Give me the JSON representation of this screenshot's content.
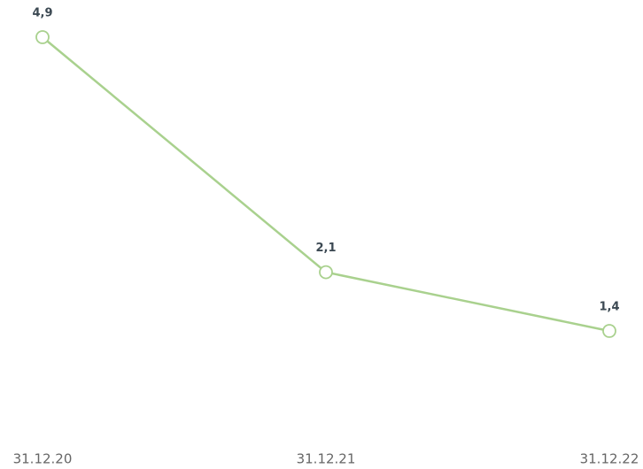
{
  "chart_data": {
    "type": "line",
    "categories": [
      "31.12.20",
      "31.12.21",
      "31.12.22"
    ],
    "series": [
      {
        "color": "#a9d18e",
        "values": [
          4.9,
          2.1,
          1.4
        ],
        "value_labels": [
          "4,9",
          "2,1",
          "1,4"
        ]
      }
    ]
  }
}
